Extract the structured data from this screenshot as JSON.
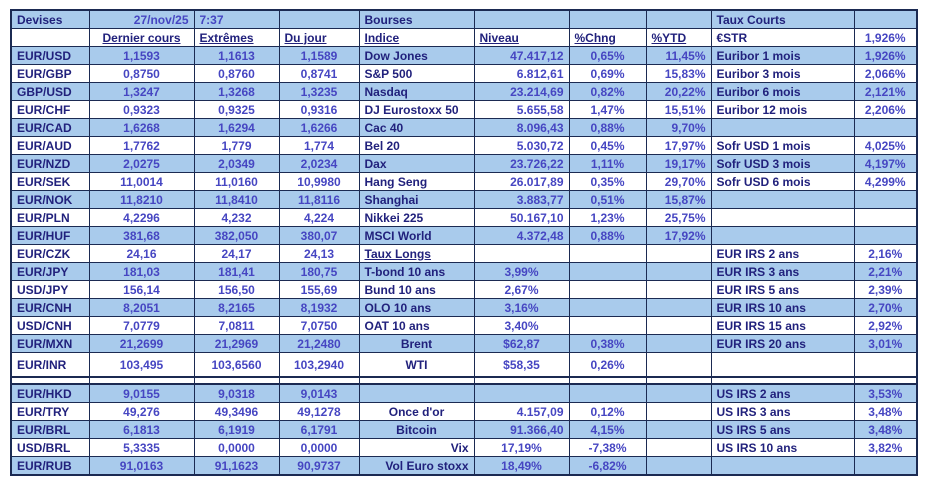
{
  "meta": {
    "date": "27/nov/25",
    "time": "7:37"
  },
  "sections": {
    "fx_title": "Devises",
    "indices_title": "Bourses",
    "short_rates_title": "Taux Courts"
  },
  "column_headers": {
    "fx": {
      "last": "Dernier cours",
      "extremes": "Extrêmes",
      "day": "Du jour"
    },
    "indices": {
      "name": "Indice",
      "level": "Niveau",
      "chng": "%Chng",
      "ytd": "%YTD"
    },
    "short_rates_first": {
      "label": "€STR",
      "value": "1,926%"
    }
  },
  "colors": {
    "row_fill_blue": "#a9cbec",
    "border": "#1b2a52",
    "label_text": "#21217c",
    "value_text": "#4646c2"
  },
  "rows": [
    {
      "shade": "blue",
      "fx": {
        "pair": "EUR/USD",
        "last": "1,1593",
        "ext": "1,1613",
        "day": "1,1589"
      },
      "bourse": {
        "label": "Dow Jones",
        "niveau": "47.417,12",
        "chng": "0,65%",
        "ytd": "11,45%"
      },
      "rate": {
        "label": "Euribor 1 mois",
        "value": "1,926%"
      }
    },
    {
      "shade": "white",
      "fx": {
        "pair": "EUR/GBP",
        "last": "0,8750",
        "ext": "0,8760",
        "day": "0,8741"
      },
      "bourse": {
        "label": "S&P 500",
        "niveau": "6.812,61",
        "chng": "0,69%",
        "ytd": "15,83%"
      },
      "rate": {
        "label": "Euribor 3 mois",
        "value": "2,066%"
      }
    },
    {
      "shade": "blue",
      "fx": {
        "pair": "GBP/USD",
        "last": "1,3247",
        "ext": "1,3268",
        "day": "1,3235"
      },
      "bourse": {
        "label": "Nasdaq",
        "niveau": "23.214,69",
        "chng": "0,82%",
        "ytd": "20,22%"
      },
      "rate": {
        "label": "Euribor 6 mois",
        "value": "2,121%"
      }
    },
    {
      "shade": "white",
      "fx": {
        "pair": "EUR/CHF",
        "last": "0,9323",
        "ext": "0,9325",
        "day": "0,9316"
      },
      "bourse": {
        "label": "DJ Eurostoxx 50",
        "niveau": "5.655,58",
        "chng": "1,47%",
        "ytd": "15,51%"
      },
      "rate": {
        "label": "Euribor 12 mois",
        "value": "2,206%"
      }
    },
    {
      "shade": "blue",
      "fx": {
        "pair": "EUR/CAD",
        "last": "1,6268",
        "ext": "1,6294",
        "day": "1,6266"
      },
      "bourse": {
        "label": "Cac 40",
        "niveau": "8.096,43",
        "chng": "0,88%",
        "ytd": "9,70%"
      },
      "rate": {
        "label": "",
        "value": ""
      }
    },
    {
      "shade": "white",
      "fx": {
        "pair": "EUR/AUD",
        "last": "1,7762",
        "ext": "1,779",
        "day": "1,774"
      },
      "bourse": {
        "label": "Bel 20",
        "niveau": "5.030,72",
        "chng": "0,45%",
        "ytd": "17,97%"
      },
      "rate": {
        "label": "Sofr USD 1 mois",
        "value": "4,025%"
      }
    },
    {
      "shade": "blue",
      "fx": {
        "pair": "EUR/NZD",
        "last": "2,0275",
        "ext": "2,0349",
        "day": "2,0234"
      },
      "bourse": {
        "label": "Dax",
        "niveau": "23.726,22",
        "chng": "1,11%",
        "ytd": "19,17%"
      },
      "rate": {
        "label": "Sofr USD 3 mois",
        "value": "4,197%"
      }
    },
    {
      "shade": "white",
      "fx": {
        "pair": "EUR/SEK",
        "last": "11,0014",
        "ext": "11,0160",
        "day": "10,9980"
      },
      "bourse": {
        "label": "Hang Seng",
        "niveau": "26.017,89",
        "chng": "0,35%",
        "ytd": "29,70%"
      },
      "rate": {
        "label": "Sofr USD 6 mois",
        "value": "4,299%"
      }
    },
    {
      "shade": "blue",
      "fx": {
        "pair": "EUR/NOK",
        "last": "11,8210",
        "ext": "11,8410",
        "day": "11,8116"
      },
      "bourse": {
        "label": "Shanghai",
        "niveau": "3.883,77",
        "chng": "0,51%",
        "ytd": "15,87%"
      },
      "rate": {
        "label": "",
        "value": ""
      }
    },
    {
      "shade": "white",
      "fx": {
        "pair": "EUR/PLN",
        "last": "4,2296",
        "ext": "4,232",
        "day": "4,224"
      },
      "bourse": {
        "label": "Nikkei 225",
        "niveau": "50.167,10",
        "chng": "1,23%",
        "ytd": "25,75%"
      },
      "rate": {
        "label": "",
        "value": ""
      }
    },
    {
      "shade": "blue",
      "fx": {
        "pair": "EUR/HUF",
        "last": "381,68",
        "ext": "382,050",
        "day": "380,07"
      },
      "bourse": {
        "label": "MSCI World",
        "niveau": "4.372,48",
        "chng": "0,88%",
        "ytd": "17,92%"
      },
      "rate": {
        "label": "",
        "value": ""
      }
    },
    {
      "shade": "white",
      "fx": {
        "pair": "EUR/CZK",
        "last": "24,16",
        "ext": "24,17",
        "day": "24,13"
      },
      "bourse": {
        "label": "Taux Longs",
        "u": true,
        "niveau": "",
        "chng": "",
        "ytd": ""
      },
      "rate": {
        "label": "EUR IRS 2 ans",
        "value": "2,16%"
      }
    },
    {
      "shade": "blue",
      "fx": {
        "pair": "EUR/JPY",
        "last": "181,03",
        "ext": "181,41",
        "day": "180,75"
      },
      "bourse": {
        "label": "T-bond 10 ans",
        "niveau": "3,99%",
        "na": "center",
        "chng": "",
        "ytd": ""
      },
      "rate": {
        "label": "EUR IRS 3 ans",
        "value": "2,21%"
      }
    },
    {
      "shade": "white",
      "fx": {
        "pair": "USD/JPY",
        "last": "156,14",
        "ext": "156,50",
        "day": "155,69"
      },
      "bourse": {
        "label": "Bund 10 ans",
        "niveau": "2,67%",
        "na": "center",
        "chng": "",
        "ytd": ""
      },
      "rate": {
        "label": "EUR IRS 5 ans",
        "value": "2,39%"
      }
    },
    {
      "shade": "blue",
      "fx": {
        "pair": "EUR/CNH",
        "last": "8,2051",
        "ext": "8,2165",
        "day": "8,1932"
      },
      "bourse": {
        "label": "OLO 10 ans",
        "niveau": "3,16%",
        "na": "center",
        "chng": "",
        "ytd": ""
      },
      "rate": {
        "label": "EUR IRS 10 ans",
        "value": "2,70%"
      }
    },
    {
      "shade": "white",
      "fx": {
        "pair": "USD/CNH",
        "last": "7,0779",
        "ext": "7,0811",
        "day": "7,0750"
      },
      "bourse": {
        "label": "OAT 10 ans",
        "niveau": "3,40%",
        "na": "center",
        "chng": "",
        "ytd": ""
      },
      "rate": {
        "label": "EUR IRS 15 ans",
        "value": "2,92%"
      }
    },
    {
      "shade": "blue",
      "fx": {
        "pair": "EUR/MXN",
        "last": "21,2699",
        "ext": "21,2969",
        "day": "21,2480"
      },
      "bourse": {
        "label": "Brent",
        "la": "center",
        "niveau": "$62,87",
        "na": "center",
        "chng": "0,38%",
        "ytd": ""
      },
      "rate": {
        "label": "EUR IRS 20 ans",
        "value": "3,01%"
      }
    },
    {
      "shade": "white",
      "tall": true,
      "fx": {
        "pair": "EUR/INR",
        "last": "103,495",
        "ext": "103,6560",
        "day": "103,2940"
      },
      "bourse": {
        "label": "WTI",
        "la": "center",
        "niveau": "$58,35",
        "na": "center",
        "chng": "0,26%",
        "ytd": ""
      },
      "rate": {
        "label": "",
        "value": ""
      }
    },
    {
      "shade": "white",
      "spacer": true
    },
    {
      "shade": "blue",
      "fx": {
        "pair": "EUR/HKD",
        "last": "9,0155",
        "ext": "9,0318",
        "day": "9,0143"
      },
      "bourse": {
        "label": "",
        "niveau": "",
        "chng": "",
        "ytd": ""
      },
      "rate": {
        "label": "US IRS 2 ans",
        "value": "3,53%"
      }
    },
    {
      "shade": "white",
      "fx": {
        "pair": "EUR/TRY",
        "last": "49,276",
        "ext": "49,3496",
        "day": "49,1278"
      },
      "bourse": {
        "label": "Once d'or",
        "la": "center",
        "niveau": "4.157,09",
        "chng": "0,12%",
        "ytd": ""
      },
      "rate": {
        "label": "US IRS 3 ans",
        "value": "3,48%"
      }
    },
    {
      "shade": "blue",
      "fx": {
        "pair": "EUR/BRL",
        "last": "6,1813",
        "ext": "6,1919",
        "day": "6,1791"
      },
      "bourse": {
        "label": "Bitcoin",
        "la": "center",
        "niveau": "91.366,40",
        "chng": "4,15%",
        "ytd": ""
      },
      "rate": {
        "label": "US IRS 5 ans",
        "value": "3,48%"
      }
    },
    {
      "shade": "white",
      "fx": {
        "pair": "USD/BRL",
        "last": "5,3335",
        "ext": "0,0000",
        "day": "0,0000"
      },
      "bourse": {
        "label": "Vix",
        "la": "right",
        "niveau": "17,19%",
        "na": "center",
        "chng": "-7,38%",
        "ytd": ""
      },
      "rate": {
        "label": "US IRS 10 ans",
        "value": "3,82%"
      }
    },
    {
      "shade": "blue",
      "fx": {
        "pair": "EUR/RUB",
        "last": "91,0163",
        "ext": "91,1623",
        "day": "90,9737"
      },
      "bourse": {
        "label": "Vol Euro stoxx",
        "la": "right",
        "niveau": "18,49%",
        "na": "center",
        "chng": "-6,82%",
        "ytd": ""
      },
      "rate": {
        "label": "",
        "value": ""
      }
    }
  ]
}
